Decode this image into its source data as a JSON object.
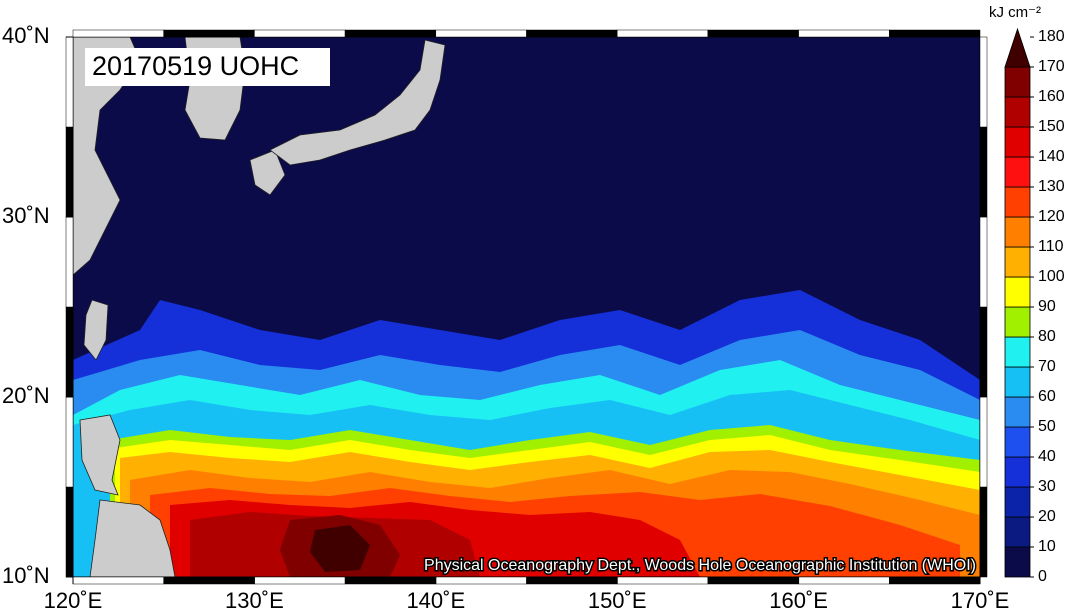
{
  "map": {
    "title": "20170519 UOHC",
    "lat_ticks": [
      {
        "value": 40,
        "label": "40˚N"
      },
      {
        "value": 30,
        "label": "30˚N"
      },
      {
        "value": 20,
        "label": "20˚N"
      },
      {
        "value": 10,
        "label": "10˚N"
      }
    ],
    "lon_ticks": [
      {
        "value": 120,
        "label": "120˚E"
      },
      {
        "value": 130,
        "label": "130˚E"
      },
      {
        "value": 140,
        "label": "140˚E"
      },
      {
        "value": 150,
        "label": "150˚E"
      },
      {
        "value": 160,
        "label": "160˚E"
      },
      {
        "value": 170,
        "label": "170˚E"
      }
    ],
    "latlim": [
      10,
      40
    ],
    "lonlim": [
      120,
      170
    ],
    "credit": "Physical Oceanography Dept., Woods Hole Oceanographic Institution (WHOI)",
    "colorbar": {
      "unit": "kJ cm⁻²",
      "ticks": [
        0,
        10,
        20,
        30,
        40,
        50,
        60,
        70,
        80,
        90,
        100,
        110,
        120,
        130,
        140,
        150,
        160,
        170,
        180
      ],
      "colors": [
        "#0b0b4a",
        "#0a1a80",
        "#0a23a8",
        "#1530d8",
        "#1e50f0",
        "#2a8cf0",
        "#16c0f5",
        "#20f0f0",
        "#a0f000",
        "#ffff00",
        "#ffb000",
        "#ff8000",
        "#ff4000",
        "#ff1010",
        "#e00000",
        "#b00000",
        "#800000",
        "#400000"
      ]
    }
  }
}
